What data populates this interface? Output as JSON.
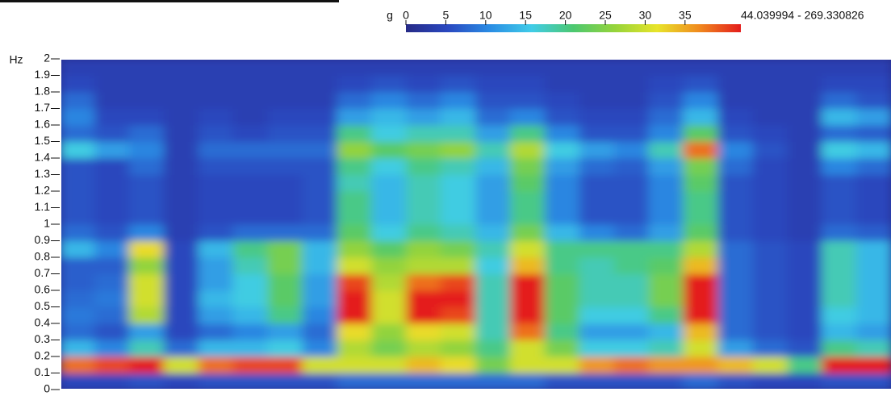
{
  "chart_data": {
    "type": "heatmap",
    "y_label": "Hz",
    "ylim": [
      0,
      2
    ],
    "yticks": [
      0,
      0.1,
      0.2,
      0.3,
      0.4,
      0.5,
      0.6,
      0.7,
      0.8,
      0.9,
      1,
      1.1,
      1.2,
      1.3,
      1.4,
      1.5,
      1.6,
      1.7,
      1.8,
      1.9,
      2
    ],
    "colorbar": {
      "label": "g",
      "clim": [
        0,
        42
      ],
      "ticks": [
        0,
        5,
        10,
        15,
        20,
        25,
        30,
        35
      ],
      "max_label": "44.039994 - 269.330826",
      "colors": [
        "#262a86",
        "#2a48c0",
        "#2a8ce4",
        "#40cce8",
        "#4cc870",
        "#96d43a",
        "#e8e42a",
        "#f08a1e",
        "#e41c1c"
      ]
    },
    "z": [
      [
        5,
        38,
        14,
        8,
        9,
        8,
        7,
        7,
        14,
        8,
        6,
        6,
        6,
        6,
        16,
        8,
        10,
        8,
        5,
        4
      ],
      [
        5,
        40,
        10,
        6,
        8,
        9,
        8,
        7,
        10,
        6,
        5,
        5,
        5,
        5,
        12,
        6,
        5,
        4,
        4,
        4
      ],
      [
        6,
        42,
        18,
        12,
        28,
        30,
        30,
        26,
        32,
        10,
        6,
        6,
        6,
        8,
        10,
        8,
        5,
        4,
        4,
        4
      ],
      [
        5,
        30,
        8,
        5,
        5,
        5,
        5,
        5,
        5,
        4,
        4,
        4,
        4,
        4,
        4,
        4,
        4,
        4,
        4,
        4
      ],
      [
        6,
        38,
        14,
        8,
        12,
        14,
        12,
        12,
        14,
        6,
        5,
        5,
        5,
        6,
        8,
        6,
        5,
        4,
        4,
        4
      ],
      [
        6,
        40,
        14,
        10,
        14,
        16,
        16,
        18,
        20,
        8,
        5,
        5,
        5,
        6,
        8,
        5,
        4,
        4,
        4,
        4
      ],
      [
        6,
        40,
        16,
        12,
        20,
        22,
        22,
        24,
        24,
        8,
        5,
        5,
        5,
        6,
        8,
        6,
        5,
        4,
        4,
        4
      ],
      [
        6,
        30,
        10,
        8,
        10,
        12,
        12,
        14,
        14,
        8,
        6,
        6,
        6,
        6,
        8,
        6,
        5,
        4,
        4,
        4
      ],
      [
        8,
        30,
        28,
        32,
        42,
        44,
        40,
        30,
        26,
        22,
        20,
        20,
        18,
        20,
        26,
        20,
        12,
        8,
        5,
        4
      ],
      [
        8,
        30,
        24,
        26,
        30,
        30,
        28,
        26,
        22,
        16,
        14,
        14,
        14,
        16,
        22,
        16,
        14,
        10,
        6,
        4
      ],
      [
        8,
        34,
        28,
        32,
        42,
        44,
        38,
        28,
        26,
        20,
        18,
        18,
        18,
        20,
        24,
        18,
        12,
        8,
        5,
        4
      ],
      [
        8,
        32,
        26,
        30,
        40,
        44,
        40,
        28,
        24,
        18,
        16,
        16,
        16,
        18,
        26,
        18,
        14,
        10,
        6,
        4
      ],
      [
        8,
        24,
        20,
        18,
        18,
        18,
        18,
        16,
        18,
        14,
        12,
        12,
        12,
        14,
        18,
        12,
        8,
        6,
        5,
        4
      ],
      [
        8,
        30,
        30,
        38,
        44,
        44,
        42,
        34,
        30,
        24,
        20,
        20,
        22,
        24,
        28,
        20,
        10,
        6,
        5,
        4
      ],
      [
        6,
        30,
        24,
        20,
        22,
        22,
        22,
        20,
        20,
        14,
        10,
        10,
        10,
        12,
        16,
        10,
        6,
        5,
        4,
        4
      ],
      [
        6,
        36,
        16,
        12,
        16,
        18,
        18,
        18,
        20,
        10,
        6,
        6,
        6,
        8,
        12,
        6,
        5,
        4,
        4,
        4
      ],
      [
        6,
        38,
        16,
        12,
        16,
        18,
        18,
        20,
        20,
        8,
        6,
        6,
        6,
        7,
        10,
        6,
        5,
        4,
        4,
        4
      ],
      [
        6,
        36,
        18,
        14,
        20,
        24,
        24,
        22,
        20,
        12,
        10,
        10,
        10,
        12,
        18,
        10,
        8,
        6,
        5,
        4
      ],
      [
        8,
        36,
        30,
        34,
        42,
        44,
        42,
        34,
        28,
        22,
        20,
        20,
        22,
        24,
        38,
        22,
        14,
        10,
        6,
        4
      ],
      [
        6,
        34,
        12,
        8,
        8,
        8,
        8,
        8,
        8,
        6,
        6,
        6,
        6,
        8,
        10,
        6,
        5,
        4,
        4,
        4
      ],
      [
        5,
        30,
        8,
        6,
        6,
        6,
        6,
        6,
        6,
        5,
        5,
        5,
        5,
        5,
        6,
        5,
        4,
        4,
        4,
        4
      ],
      [
        5,
        20,
        6,
        5,
        5,
        5,
        5,
        5,
        5,
        4,
        4,
        4,
        4,
        4,
        4,
        4,
        4,
        4,
        4,
        4
      ],
      [
        6,
        42,
        20,
        14,
        16,
        18,
        18,
        18,
        18,
        8,
        6,
        6,
        6,
        10,
        16,
        8,
        14,
        8,
        5,
        4
      ],
      [
        6,
        42,
        18,
        12,
        14,
        14,
        14,
        14,
        14,
        7,
        5,
        5,
        5,
        8,
        14,
        7,
        12,
        6,
        5,
        4
      ]
    ]
  }
}
